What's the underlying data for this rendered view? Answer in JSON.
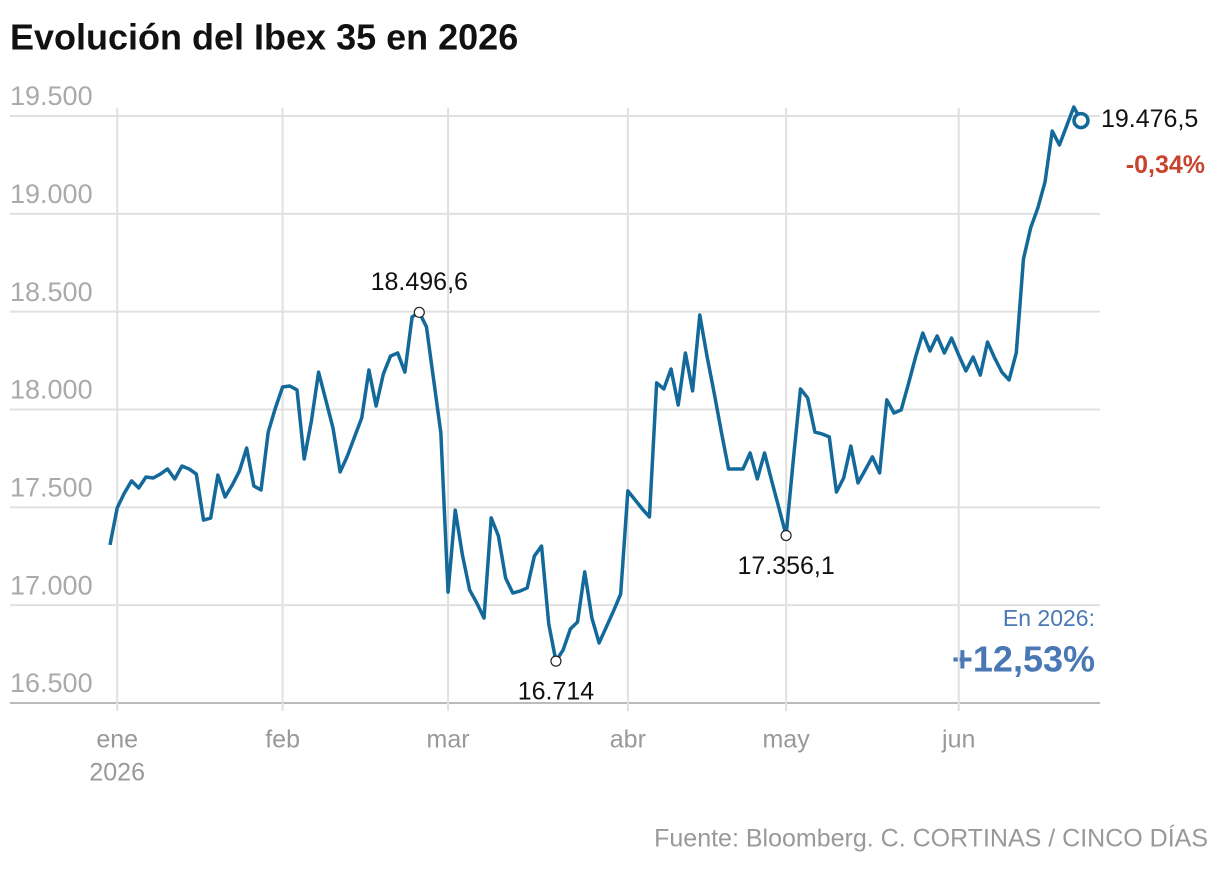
{
  "chart_data": {
    "type": "line",
    "title": "Evolución del Ibex 35 en 2026",
    "categories": [
      null,
      "ene",
      null,
      null,
      null,
      null,
      null,
      null,
      null,
      null,
      null,
      null,
      null,
      null,
      null,
      null,
      null,
      null,
      null,
      null,
      null,
      null,
      null,
      null,
      "feb",
      null,
      null,
      null,
      null,
      null,
      null,
      null,
      null,
      null,
      null,
      null,
      null,
      null,
      null,
      null,
      null,
      null,
      null,
      null,
      null,
      null,
      null,
      "mar",
      null,
      null,
      null,
      null,
      null,
      null,
      null,
      null,
      null,
      null,
      null,
      null,
      null,
      null,
      null,
      null,
      null,
      null,
      null,
      null,
      null,
      null,
      null,
      null,
      "abr",
      null,
      null,
      null,
      null,
      null,
      null,
      null,
      null,
      null,
      null,
      null,
      null,
      null,
      null,
      null,
      null,
      null,
      null,
      null,
      null,
      null,
      "may",
      null,
      null,
      null,
      null,
      null,
      null,
      null,
      null,
      null,
      null,
      null,
      null,
      null,
      null,
      null,
      null,
      null,
      null,
      null,
      null,
      null,
      null,
      null,
      "jun",
      null,
      null,
      null,
      null,
      null,
      null,
      null,
      null,
      null,
      null,
      null,
      null,
      null,
      null,
      null,
      null,
      null
    ],
    "year_label": "2026",
    "values": [
      17308,
      17497,
      17573,
      17635,
      17599,
      17655,
      17650,
      17670,
      17696,
      17645,
      17711,
      17696,
      17670,
      17435,
      17445,
      17665,
      17553,
      17614,
      17686,
      17803,
      17609,
      17589,
      17885,
      18008,
      18115,
      18120,
      18100,
      17747,
      17941,
      18191,
      18049,
      17906,
      17681,
      17762,
      17860,
      17957,
      18202,
      18018,
      18181,
      18273,
      18289,
      18191,
      18473,
      18496.6,
      18422,
      18151,
      17880,
      17067,
      17486,
      17256,
      17078,
      17011,
      16934,
      17446,
      17354,
      17139,
      17062,
      17072,
      17088,
      17251,
      17302,
      16904,
      16714,
      16771,
      16878,
      16914,
      17170,
      16934,
      16807,
      16888,
      16970,
      17057,
      17584,
      17538,
      17492,
      17451,
      18136,
      18105,
      18207,
      18023,
      18289,
      18095,
      18483,
      18273,
      18084,
      17885,
      17696,
      17696,
      17696,
      17778,
      17645,
      17778,
      17635,
      17497,
      17356.1,
      17742,
      18105,
      18059,
      17885,
      17875,
      17860,
      17578,
      17650,
      17813,
      17625,
      17691,
      17758,
      17676,
      18049,
      17982,
      17998,
      18130,
      18268,
      18391,
      18299,
      18376,
      18289,
      18365,
      18278,
      18197,
      18268,
      18176,
      18345,
      18263,
      18191,
      18151,
      18289,
      18769,
      18928,
      19030,
      19163,
      19423,
      19352,
      19449,
      19546,
      19476.5
    ],
    "value_labels": [
      null,
      null,
      null,
      null,
      null,
      null,
      null,
      null,
      null,
      null,
      null,
      null,
      null,
      null,
      null,
      null,
      null,
      null,
      null,
      null,
      null,
      null,
      null,
      null,
      null,
      null,
      null,
      null,
      null,
      null,
      null,
      null,
      null,
      null,
      null,
      null,
      null,
      null,
      null,
      null,
      null,
      null,
      null,
      "18.496,6",
      null,
      null,
      null,
      null,
      null,
      null,
      null,
      null,
      null,
      null,
      null,
      null,
      null,
      null,
      null,
      null,
      null,
      null,
      "16.714",
      null,
      null,
      null,
      null,
      null,
      null,
      null,
      null,
      null,
      null,
      null,
      null,
      null,
      null,
      null,
      null,
      null,
      null,
      null,
      null,
      null,
      null,
      null,
      null,
      null,
      null,
      null,
      null,
      null,
      null,
      null,
      "17.356,1",
      null,
      null,
      null,
      null,
      null,
      null,
      null,
      null,
      null,
      null,
      null,
      null,
      null,
      null,
      null,
      null,
      null,
      null,
      null,
      null,
      null,
      null,
      null,
      null,
      null,
      null,
      null,
      null,
      null,
      null,
      null,
      null,
      null,
      null,
      null,
      null,
      null,
      null,
      null,
      null,
      "19.476,5"
    ],
    "color": "#12699a",
    "last_change": "-0,34%",
    "ytd_label": "En 2026:",
    "ytd_change": "+12,53%",
    "source": "Fuente: Bloomberg. C. CORTINAS / CINCO DÍAS",
    "ylim": [
      16500,
      19500
    ],
    "yticks": [
      {
        "value": 16500,
        "label": "16.500"
      },
      {
        "value": 17000,
        "label": "17.000"
      },
      {
        "value": 17500,
        "label": "17.500"
      },
      {
        "value": 18000,
        "label": "18.000"
      },
      {
        "value": 18500,
        "label": "18.500"
      },
      {
        "value": 19000,
        "label": "19.000"
      },
      {
        "value": 19500,
        "label": "19.500"
      }
    ],
    "grid": true
  }
}
